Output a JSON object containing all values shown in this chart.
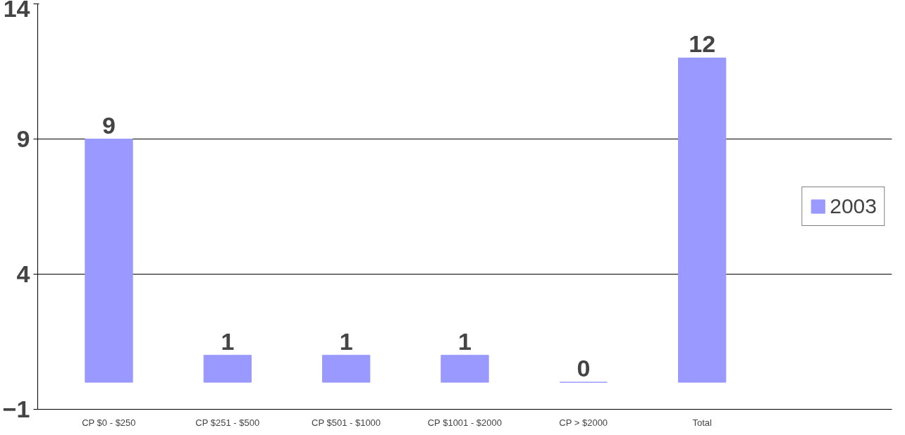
{
  "chart_data": {
    "type": "bar",
    "categories": [
      "CP $0 - $250",
      "CP $251 - $500",
      "CP $501 - $1000",
      "CP $1001 - $2000",
      "CP > $2000",
      "Total"
    ],
    "series": [
      {
        "name": "2003",
        "color": "#9999ff",
        "values": [
          9,
          1,
          1,
          1,
          0,
          12
        ]
      }
    ],
    "ylim": [
      -1,
      14
    ],
    "yticks": [
      -1,
      4,
      9,
      14
    ],
    "grid": "y",
    "legend": "right",
    "data_labels": true
  }
}
